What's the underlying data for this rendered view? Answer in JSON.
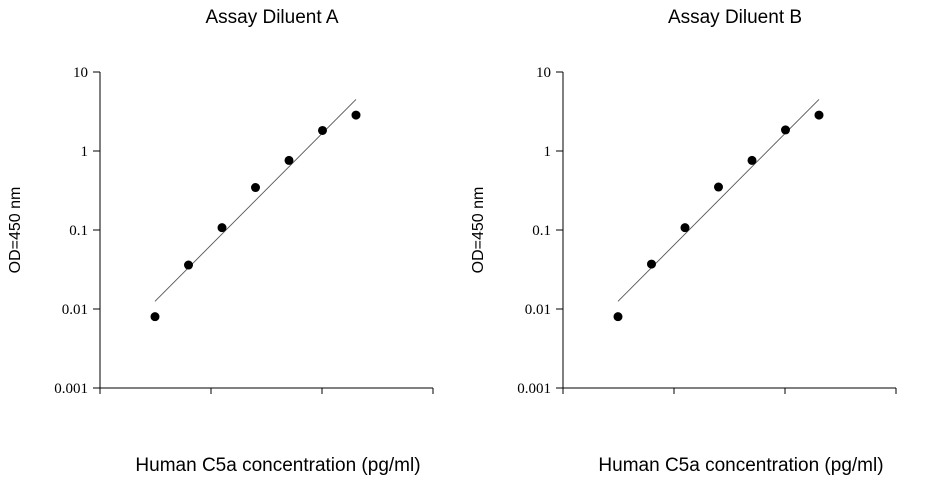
{
  "chart_data": [
    {
      "type": "scatter",
      "title": "Assay Diluent A",
      "xlabel": "Human C5a concentration (pg/ml)",
      "ylabel": "OD=450 nm",
      "yscale": "log",
      "ylim": [
        0.001,
        10
      ],
      "yticks": [
        "10",
        "1",
        "0.1",
        "0.01",
        "0.001"
      ],
      "x_tick_labels_visible": false,
      "grid": false,
      "series": [
        {
          "points": [
            {
              "x": 1,
              "y": 0.008
            },
            {
              "x": 2,
              "y": 0.036
            },
            {
              "x": 3,
              "y": 0.107
            },
            {
              "x": 4,
              "y": 0.345
            },
            {
              "x": 5,
              "y": 0.76
            },
            {
              "x": 6,
              "y": 1.82
            },
            {
              "x": 7,
              "y": 2.85
            }
          ]
        }
      ],
      "fit_line": {
        "y_start": 0.0125,
        "y_end": 4.5
      }
    },
    {
      "type": "scatter",
      "title": "Assay Diluent B",
      "xlabel": "Human C5a concentration (pg/ml)",
      "ylabel": "OD=450 nm",
      "yscale": "log",
      "ylim": [
        0.001,
        10
      ],
      "yticks": [
        "10",
        "1",
        "0.1",
        "0.01",
        "0.001"
      ],
      "x_tick_labels_visible": false,
      "grid": false,
      "series": [
        {
          "points": [
            {
              "x": 1,
              "y": 0.008
            },
            {
              "x": 2,
              "y": 0.037
            },
            {
              "x": 3,
              "y": 0.107
            },
            {
              "x": 4,
              "y": 0.35
            },
            {
              "x": 5,
              "y": 0.76
            },
            {
              "x": 6,
              "y": 1.85
            },
            {
              "x": 7,
              "y": 2.85
            }
          ]
        }
      ],
      "fit_line": {
        "y_start": 0.0125,
        "y_end": 4.5
      }
    }
  ]
}
